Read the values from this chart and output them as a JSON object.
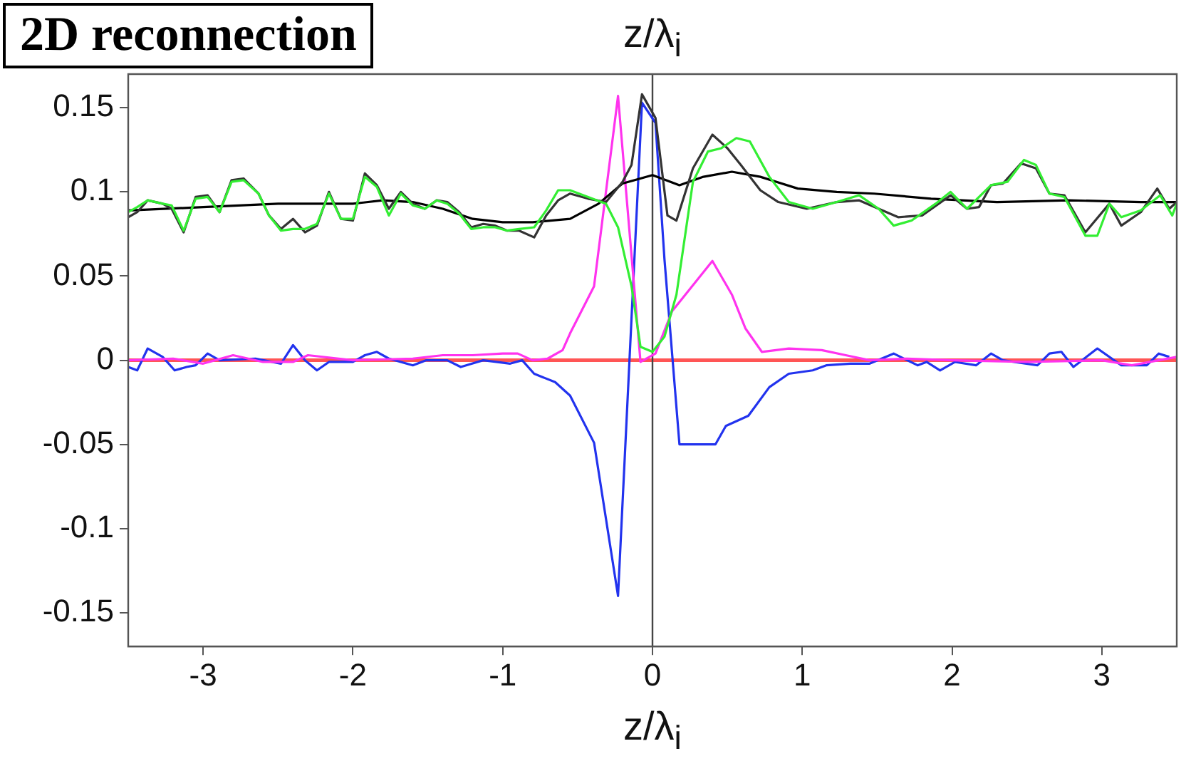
{
  "chart_data": {
    "type": "line",
    "title": "2D reconnection",
    "xlabel": "z/λ$_{i}$",
    "x2label": "z/λ$_{i}$",
    "marker": "none",
    "line_style": "solid",
    "grid": false,
    "xlim": [
      -3.5,
      3.5
    ],
    "xticks": [
      -3,
      -2,
      -1,
      0,
      1,
      2,
      3
    ],
    "ylim": [
      -0.17,
      0.17
    ],
    "yticks": [
      -0.15,
      -0.1,
      -0.05,
      0,
      0.05,
      0.1,
      0.15
    ],
    "ref_lines": [
      {
        "axis": "y",
        "value": 0,
        "color": "#ff5555"
      },
      {
        "axis": "x",
        "value": 0,
        "color": "#444444"
      }
    ],
    "series": [
      {
        "color": "#33ee33",
        "x": [
          -3.5,
          -3.44,
          -3.37,
          -3.27,
          -3.21,
          -3.13,
          -3.05,
          -2.97,
          -2.89,
          -2.81,
          -2.73,
          -2.63,
          -2.56,
          -2.48,
          -2.4,
          -2.32,
          -2.24,
          -2.16,
          -2.08,
          -2.0,
          -1.92,
          -1.84,
          -1.76,
          -1.68,
          -1.6,
          -1.52,
          -1.44,
          -1.37,
          -1.29,
          -1.21,
          -1.13,
          -1.05,
          -0.97,
          -0.89,
          -0.79,
          -0.71,
          -0.63,
          -0.55,
          -0.43,
          -0.31,
          -0.23,
          -0.14,
          -0.08,
          0.0,
          0.08,
          0.16,
          0.27,
          0.37,
          0.46,
          0.56,
          0.65,
          0.78,
          0.91,
          1.07,
          1.23,
          1.38,
          1.51,
          1.61,
          1.73,
          1.89,
          1.99,
          2.1,
          2.26,
          2.37,
          2.48,
          2.56,
          2.65,
          2.75,
          2.89,
          2.97,
          3.05,
          3.13,
          3.26,
          3.39,
          3.47,
          3.5
        ],
        "values": [
          0.088,
          0.091,
          0.095,
          0.093,
          0.092,
          0.077,
          0.096,
          0.097,
          0.088,
          0.106,
          0.107,
          0.099,
          0.086,
          0.077,
          0.078,
          0.078,
          0.081,
          0.099,
          0.084,
          0.084,
          0.109,
          0.103,
          0.086,
          0.099,
          0.092,
          0.09,
          0.095,
          0.093,
          0.087,
          0.078,
          0.079,
          0.079,
          0.077,
          0.078,
          0.079,
          0.089,
          0.101,
          0.101,
          0.097,
          0.093,
          0.079,
          0.044,
          0.008,
          0.005,
          0.014,
          0.039,
          0.106,
          0.124,
          0.126,
          0.132,
          0.13,
          0.109,
          0.094,
          0.09,
          0.094,
          0.098,
          0.09,
          0.08,
          0.083,
          0.093,
          0.1,
          0.09,
          0.104,
          0.106,
          0.119,
          0.116,
          0.099,
          0.097,
          0.074,
          0.074,
          0.093,
          0.085,
          0.089,
          0.098,
          0.086,
          0.093
        ]
      },
      {
        "color": "#333333",
        "x": [
          -3.5,
          -3.44,
          -3.37,
          -3.27,
          -3.21,
          -3.13,
          -3.05,
          -2.97,
          -2.89,
          -2.81,
          -2.73,
          -2.63,
          -2.56,
          -2.48,
          -2.4,
          -2.32,
          -2.24,
          -2.16,
          -2.08,
          -2.0,
          -1.92,
          -1.84,
          -1.76,
          -1.68,
          -1.6,
          -1.52,
          -1.44,
          -1.37,
          -1.29,
          -1.21,
          -1.13,
          -1.05,
          -0.97,
          -0.89,
          -0.79,
          -0.71,
          -0.63,
          -0.55,
          -0.43,
          -0.31,
          -0.2,
          -0.14,
          -0.07,
          0.02,
          0.1,
          0.16,
          0.27,
          0.4,
          0.5,
          0.59,
          0.72,
          0.84,
          1.03,
          1.23,
          1.38,
          1.51,
          1.64,
          1.8,
          1.99,
          2.1,
          2.18,
          2.26,
          2.34,
          2.46,
          2.56,
          2.65,
          2.75,
          2.89,
          3.05,
          3.13,
          3.26,
          3.37,
          3.45,
          3.5
        ],
        "values": [
          0.085,
          0.088,
          0.095,
          0.093,
          0.09,
          0.076,
          0.097,
          0.098,
          0.088,
          0.107,
          0.108,
          0.099,
          0.086,
          0.078,
          0.084,
          0.076,
          0.08,
          0.1,
          0.084,
          0.083,
          0.111,
          0.104,
          0.09,
          0.1,
          0.093,
          0.09,
          0.095,
          0.094,
          0.088,
          0.079,
          0.081,
          0.08,
          0.077,
          0.077,
          0.073,
          0.086,
          0.095,
          0.099,
          0.096,
          0.094,
          0.106,
          0.116,
          0.158,
          0.144,
          0.086,
          0.083,
          0.114,
          0.134,
          0.126,
          0.116,
          0.101,
          0.094,
          0.09,
          0.094,
          0.095,
          0.09,
          0.085,
          0.086,
          0.098,
          0.09,
          0.091,
          0.104,
          0.105,
          0.117,
          0.114,
          0.099,
          0.098,
          0.076,
          0.093,
          0.08,
          0.088,
          0.102,
          0.09,
          0.094
        ]
      },
      {
        "color": "#000000",
        "x": [
          -3.5,
          -3.0,
          -2.5,
          -2.0,
          -1.8,
          -1.6,
          -1.4,
          -1.2,
          -1.0,
          -0.8,
          -0.55,
          -0.36,
          -0.2,
          0.0,
          0.18,
          0.34,
          0.53,
          0.72,
          0.97,
          1.23,
          1.48,
          1.86,
          2.3,
          2.78,
          3.26,
          3.5
        ],
        "values": [
          0.089,
          0.091,
          0.093,
          0.093,
          0.095,
          0.094,
          0.09,
          0.084,
          0.082,
          0.082,
          0.084,
          0.093,
          0.105,
          0.11,
          0.104,
          0.109,
          0.112,
          0.109,
          0.102,
          0.1,
          0.099,
          0.096,
          0.094,
          0.095,
          0.094,
          0.094
        ]
      },
      {
        "color": "#ff33ee",
        "x": [
          -3.5,
          -3.2,
          -3.0,
          -2.8,
          -2.6,
          -2.4,
          -2.3,
          -2.0,
          -1.6,
          -1.4,
          -1.2,
          -1.0,
          -0.9,
          -0.8,
          -0.7,
          -0.6,
          -0.55,
          -0.39,
          -0.23,
          -0.08,
          0.02,
          0.13,
          0.225,
          0.27,
          0.4,
          0.53,
          0.62,
          0.73,
          0.91,
          1.13,
          1.29,
          1.45,
          1.7,
          2.0,
          2.5,
          3.0,
          3.2,
          3.5
        ],
        "values": [
          0.0,
          0.001,
          -0.002,
          0.003,
          -0.001,
          -0.001,
          0.003,
          0.0,
          0.001,
          0.003,
          0.003,
          0.004,
          0.004,
          0.0,
          0.001,
          0.006,
          0.016,
          0.044,
          0.157,
          -0.001,
          0.004,
          0.029,
          null,
          null,
          0.059,
          0.039,
          0.019,
          0.005,
          0.007,
          0.006,
          0.003,
          0.0,
          0.001,
          0.0,
          -0.001,
          0.0,
          -0.003,
          0.002
        ]
      },
      {
        "color": "#2233ee",
        "x": [
          -3.5,
          -3.44,
          -3.37,
          -3.27,
          -3.19,
          -3.11,
          -3.05,
          -2.97,
          -2.89,
          -2.65,
          -2.48,
          -2.4,
          -2.32,
          -2.24,
          -2.16,
          -2.0,
          -1.92,
          -1.84,
          -1.76,
          -1.6,
          -1.51,
          -1.37,
          -1.28,
          -1.13,
          -0.95,
          -0.87,
          -0.79,
          -0.65,
          -0.55,
          -0.39,
          -0.23,
          -0.07,
          0.02,
          0.08,
          0.18,
          0.27,
          0.42,
          0.49,
          0.64,
          0.78,
          0.91,
          1.07,
          1.16,
          1.32,
          1.45,
          1.61,
          1.77,
          1.83,
          1.92,
          2.02,
          2.16,
          2.26,
          2.34,
          2.57,
          2.65,
          2.73,
          2.81,
          2.97,
          3.13,
          3.3,
          3.38,
          3.45
        ],
        "values": [
          -0.004,
          -0.006,
          0.007,
          0.002,
          -0.006,
          -0.004,
          -0.003,
          0.004,
          0.0,
          0.001,
          -0.002,
          0.009,
          0.0,
          -0.006,
          -0.001,
          -0.001,
          0.003,
          0.005,
          0.001,
          -0.003,
          0.0,
          0.0,
          -0.004,
          0.0,
          -0.002,
          0.0,
          -0.008,
          -0.013,
          -0.021,
          -0.049,
          -0.14,
          0.153,
          0.141,
          0.06,
          -0.05,
          null,
          -0.05,
          -0.039,
          -0.033,
          -0.016,
          -0.008,
          -0.006,
          -0.003,
          -0.002,
          -0.002,
          0.004,
          -0.003,
          -0.001,
          -0.006,
          -0.001,
          -0.003,
          0.004,
          0.0,
          -0.003,
          0.004,
          0.005,
          -0.004,
          0.007,
          -0.003,
          -0.003,
          0.004,
          0.002
        ]
      }
    ]
  }
}
